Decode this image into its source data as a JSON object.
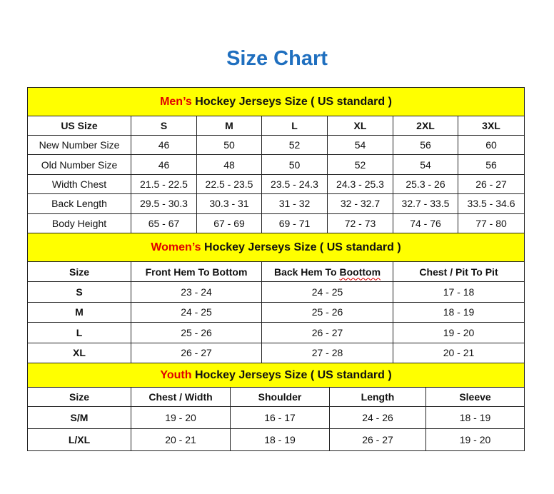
{
  "title": "Size Chart",
  "accent_color": "#1f6fbf",
  "band_color": "#ffff00",
  "highlight_color": "#e00000",
  "men": {
    "title_highlight": "Men’s",
    "title_rest": " Hockey Jerseys Size ( US standard )",
    "headers": [
      "US Size",
      "S",
      "M",
      "L",
      "XL",
      "2XL",
      "3XL"
    ],
    "rows": [
      [
        "New Number Size",
        "46",
        "50",
        "52",
        "54",
        "56",
        "60"
      ],
      [
        "Old Number Size",
        "46",
        "48",
        "50",
        "52",
        "54",
        "56"
      ],
      [
        "Width Chest",
        "21.5 - 22.5",
        "22.5 - 23.5",
        "23.5 - 24.3",
        "24.3 - 25.3",
        "25.3 - 26",
        "26 - 27"
      ],
      [
        "Back Length",
        "29.5 - 30.3",
        "30.3 - 31",
        "31 - 32",
        "32 - 32.7",
        "32.7 - 33.5",
        "33.5 - 34.6"
      ],
      [
        "Body Height",
        "65 - 67",
        "67 - 69",
        "69 - 71",
        "72 - 73",
        "74 - 76",
        "77 - 80"
      ]
    ]
  },
  "women": {
    "title_highlight": "Women’s",
    "title_rest": " Hockey Jerseys Size ( US standard )",
    "headers": [
      "Size",
      "Front Hem To Bottom",
      "Back Hem To Boottom",
      "Chest / Pit To Pit"
    ],
    "rows": [
      [
        "S",
        "23 - 24",
        "24 - 25",
        "17 - 18"
      ],
      [
        "M",
        "24 - 25",
        "25 - 26",
        "18 - 19"
      ],
      [
        "L",
        "25 - 26",
        "26 - 27",
        "19 - 20"
      ],
      [
        "XL",
        "26 - 27",
        "27 - 28",
        "20 - 21"
      ]
    ]
  },
  "youth": {
    "title_highlight": "Youth",
    "title_rest": " Hockey Jerseys Size ( US standard )",
    "headers": [
      "Size",
      "Chest / Width",
      "Shoulder",
      "Length",
      "Sleeve"
    ],
    "rows": [
      [
        "S/M",
        "19 - 20",
        "16 - 17",
        "24 - 26",
        "18 - 19"
      ],
      [
        "L/XL",
        "20 - 21",
        "18 - 19",
        "26 - 27",
        "19 - 20"
      ]
    ]
  }
}
